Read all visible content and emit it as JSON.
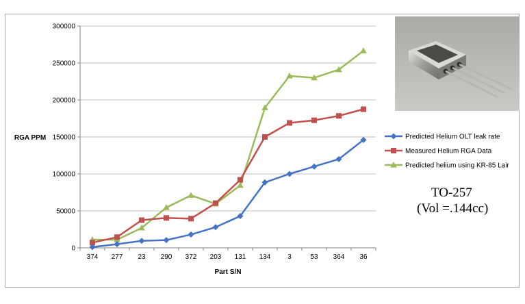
{
  "chart_data": {
    "type": "line",
    "title": "",
    "xlabel": "Part S/N",
    "ylabel": "RGA PPM",
    "categories": [
      "374",
      "277",
      "23",
      "290",
      "372",
      "203",
      "131",
      "134",
      "3",
      "53",
      "364",
      "36"
    ],
    "ylim": [
      0,
      300000
    ],
    "yticks": [
      0,
      50000,
      100000,
      150000,
      200000,
      250000,
      300000
    ],
    "grid": true,
    "legend_position": "right",
    "series": [
      {
        "name": "Predicted Helium  OLT leak rate",
        "color": "#4472c4",
        "marker": "diamond",
        "values": [
          1000,
          5000,
          9500,
          10500,
          18000,
          28000,
          43000,
          88500,
          100000,
          110000,
          120000,
          146000
        ]
      },
      {
        "name": "Measured Helium RGA Data",
        "color": "#c0504d",
        "marker": "square",
        "values": [
          7000,
          14500,
          37500,
          40500,
          39500,
          60500,
          92000,
          150000,
          169000,
          172500,
          178500,
          187500
        ]
      },
      {
        "name": "Predicted helium using  KR-85 Lair",
        "color": "#9bbb59",
        "marker": "triangle",
        "values": [
          11000,
          11000,
          27000,
          54500,
          71000,
          59500,
          84500,
          189500,
          232500,
          230000,
          241000,
          266500
        ]
      }
    ]
  },
  "caption": {
    "line1": "TO-257",
    "line2": "(Vol =.144cc)"
  },
  "photo": {
    "icon": "to-257-package-photo"
  }
}
